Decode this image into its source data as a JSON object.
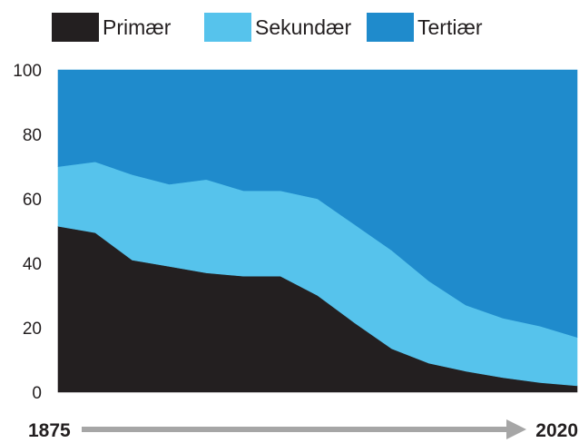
{
  "legend": [
    {
      "label": "Primær",
      "color": "#231f20"
    },
    {
      "label": "Sekundær",
      "color": "#56c3ec"
    },
    {
      "label": "Tertiær",
      "color": "#1f8bcc"
    }
  ],
  "chart_data": {
    "type": "area",
    "stacked": true,
    "title": "",
    "xlabel": "",
    "ylabel": "",
    "x_start_label": "1875",
    "x_end_label": "2020",
    "ylim": [
      0,
      100
    ],
    "yticks": [
      0,
      20,
      40,
      60,
      80,
      100
    ],
    "grid": false,
    "legend_position": "top",
    "series": [
      {
        "name": "Primær",
        "color": "#231f20",
        "values": [
          51.5,
          49.5,
          41,
          39,
          37,
          36,
          36,
          30,
          21.5,
          13.5,
          9,
          6.5,
          4.5,
          3,
          2
        ]
      },
      {
        "name": "Sekundær",
        "color": "#56c3ec",
        "values": [
          18.5,
          22,
          26.5,
          25.5,
          29,
          26.5,
          26.5,
          30,
          30.5,
          30.5,
          25.5,
          20.5,
          18.5,
          17.5,
          15
        ]
      },
      {
        "name": "Tertiær",
        "color": "#1f8bcc",
        "values": [
          30,
          28.5,
          32.5,
          35.5,
          34,
          37.5,
          37.5,
          40,
          48,
          56,
          65.5,
          73,
          77,
          79.5,
          83
        ]
      }
    ]
  }
}
